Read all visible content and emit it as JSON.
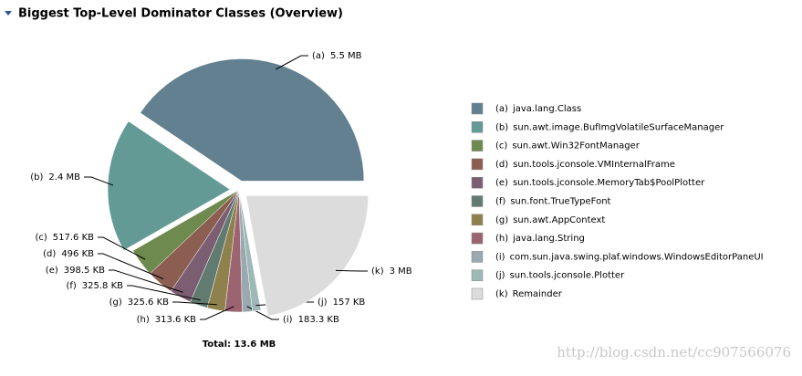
{
  "chart_data": {
    "type": "pie",
    "title": "Biggest Top-Level Dominator Classes (Overview)",
    "keys": [
      "(a)",
      "(b)",
      "(c)",
      "(d)",
      "(e)",
      "(f)",
      "(g)",
      "(h)",
      "(i)",
      "(j)",
      "(k)"
    ],
    "categories": [
      "java.lang.Class",
      "sun.awt.image.BufImgVolatileSurfaceManager",
      "sun.awt.Win32FontManager",
      "sun.tools.jconsole.VMInternalFrame",
      "sun.tools.jconsole.MemoryTab$PoolPlotter",
      "sun.font.TrueTypeFont",
      "sun.awt.AppContext",
      "java.lang.String",
      "com.sun.java.swing.plaf.windows.WindowsEditorPaneUI",
      "sun.tools.jconsole.Plotter",
      "Remainder"
    ],
    "values": [
      5632,
      2457.6,
      517.6,
      496,
      398.5,
      325.8,
      325.6,
      313.6,
      183.3,
      157,
      3072
    ],
    "value_labels": [
      "5.5 MB",
      "2.4 MB",
      "517.6 KB",
      "496 KB",
      "398.5 KB",
      "325.8 KB",
      "325.6 KB",
      "313.6 KB",
      "183.3 KB",
      "157 KB",
      "3 MB"
    ],
    "colors": [
      "#62808f",
      "#639a96",
      "#6e8a4e",
      "#8c5e52",
      "#7c5e72",
      "#617b71",
      "#8f814d",
      "#9c6470",
      "#9aa8b0",
      "#9db8b5",
      "#dcdcdc"
    ],
    "total": "Total: 13.6 MB"
  },
  "watermark": "http://blog.csdn.net/cc907566076"
}
